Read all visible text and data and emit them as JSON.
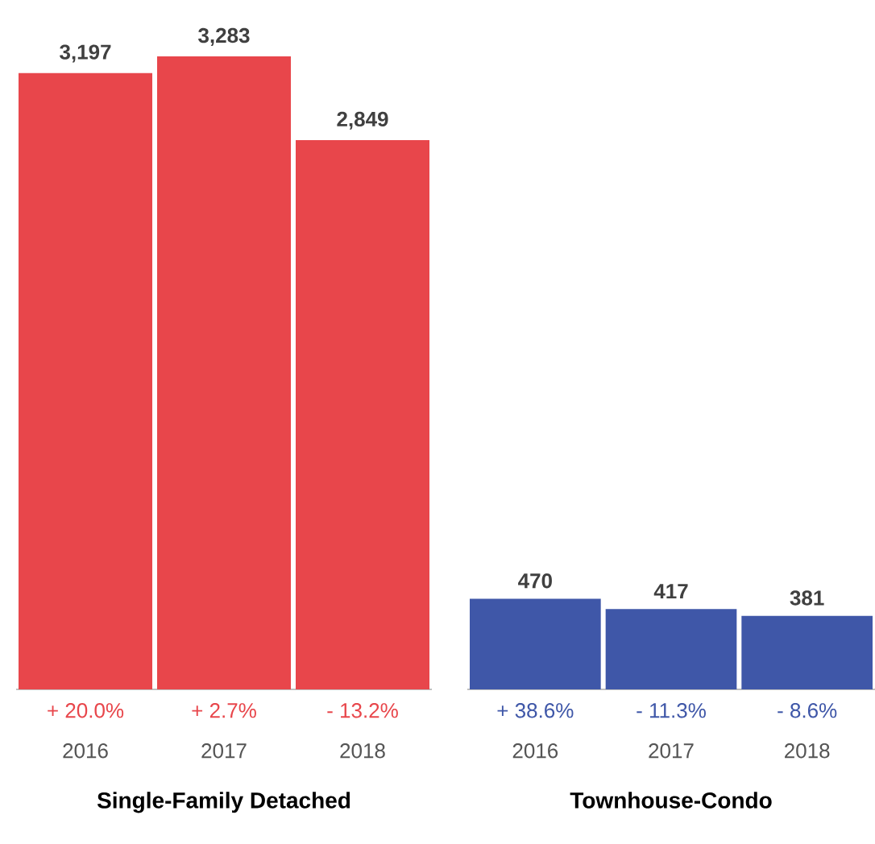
{
  "chart_data": [
    {
      "type": "bar",
      "xlabel": "Single-Family Detached",
      "categories": [
        "2016",
        "2017",
        "2018"
      ],
      "values": [
        3197,
        3283,
        2849
      ],
      "color": "#e8464b",
      "data_labels": true,
      "value_labels": [
        "3,197",
        "3,283",
        "2,849"
      ],
      "annotations": [
        {
          "text": "+ 20.0%",
          "x": "2016",
          "y": 0
        },
        {
          "text": "+ 2.7%",
          "x": "2017",
          "y": 0
        },
        {
          "text": "- 13.2%",
          "x": "2018",
          "y": 0
        }
      ]
    },
    {
      "type": "bar",
      "xlabel": "Townhouse-Condo",
      "categories": [
        "2016",
        "2017",
        "2018"
      ],
      "values": [
        470,
        417,
        381
      ],
      "color": "#3f57a8",
      "data_labels": true,
      "value_labels": [
        "470",
        "417",
        "381"
      ],
      "annotations": [
        {
          "text": "+ 38.6%",
          "x": "2016",
          "y": 0
        },
        {
          "text": "- 11.3%",
          "x": "2017",
          "y": 0
        },
        {
          "text": "- 8.6%",
          "x": "2018",
          "y": 0
        }
      ]
    }
  ]
}
